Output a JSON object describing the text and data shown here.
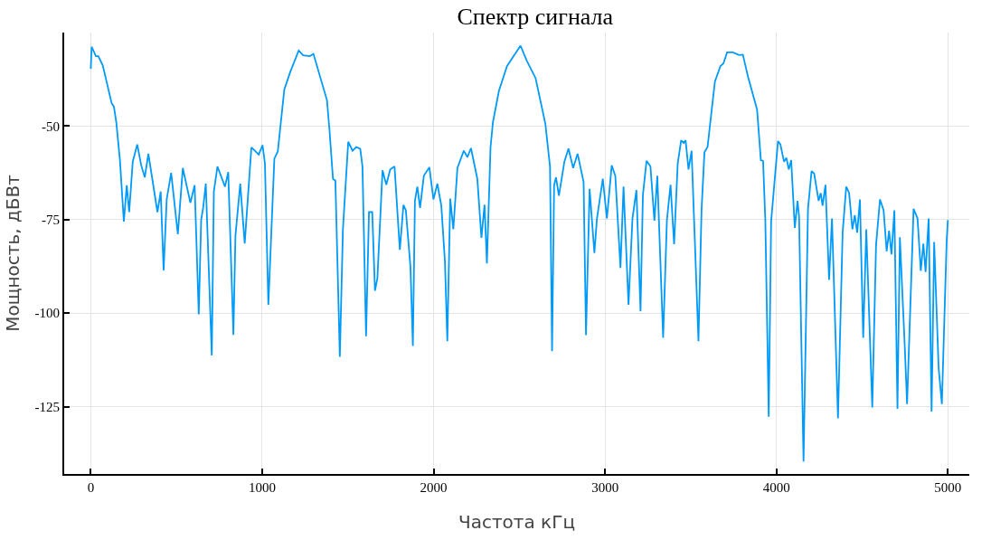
{
  "chart_data": {
    "type": "line",
    "title": "Спектр сигнала",
    "xlabel": "Частота кГц",
    "ylabel": "Мощность, дБВт",
    "x": [
      0,
      5,
      30,
      44,
      70,
      122,
      135,
      149,
      170,
      193,
      210,
      224,
      245,
      271,
      294,
      315,
      336,
      389,
      408,
      425,
      443,
      469,
      508,
      537,
      581,
      606,
      630,
      644,
      656,
      671,
      706,
      718,
      739,
      783,
      802,
      832,
      844,
      872,
      898,
      937,
      980,
      1002,
      1016,
      1036,
      1071,
      1091,
      1129,
      1164,
      1213,
      1239,
      1278,
      1299,
      1378,
      1392,
      1413,
      1427,
      1453,
      1471,
      1502,
      1527,
      1549,
      1572,
      1585,
      1606,
      1623,
      1642,
      1658,
      1672,
      1702,
      1724,
      1747,
      1772,
      1803,
      1824,
      1838,
      1865,
      1879,
      1891,
      1905,
      1921,
      1943,
      1975,
      1999,
      2022,
      2045,
      2066,
      2080,
      2097,
      2115,
      2139,
      2176,
      2197,
      2218,
      2255,
      2279,
      2297,
      2311,
      2332,
      2346,
      2381,
      2428,
      2472,
      2507,
      2544,
      2595,
      2652,
      2679,
      2691,
      2703,
      2714,
      2731,
      2763,
      2787,
      2814,
      2840,
      2875,
      2889,
      2910,
      2938,
      2953,
      2987,
      3011,
      3039,
      3060,
      3090,
      3108,
      3137,
      3160,
      3183,
      3207,
      3221,
      3242,
      3265,
      3288,
      3305,
      3339,
      3361,
      3382,
      3403,
      3424,
      3444,
      3459,
      3470,
      3487,
      3505,
      3545,
      3563,
      3580,
      3598,
      3641,
      3673,
      3691,
      3712,
      3746,
      3782,
      3804,
      3834,
      3887,
      3909,
      3922,
      3935,
      3955,
      3969,
      4009,
      4023,
      4044,
      4058,
      4072,
      4086,
      4107,
      4123,
      4132,
      4158,
      4184,
      4205,
      4220,
      4246,
      4258,
      4269,
      4286,
      4307,
      4324,
      4359,
      4386,
      4407,
      4424,
      4443,
      4457,
      4471,
      4487,
      4506,
      4524,
      4559,
      4581,
      4604,
      4625,
      4643,
      4657,
      4671,
      4688,
      4706,
      4720,
      4748,
      4762,
      4800,
      4823,
      4842,
      4857,
      4870,
      4888,
      4905,
      4920,
      4946,
      4965,
      4993,
      5000
    ],
    "series": [
      {
        "color": "#009af9",
        "values": [
          -34.7,
          -28.8,
          -31.3,
          -31.3,
          -33.8,
          -43.9,
          -44.8,
          -49,
          -59,
          -75.5,
          -65.8,
          -73,
          -59.5,
          -54.9,
          -60.4,
          -63.7,
          -57.4,
          -73,
          -67.5,
          -88.6,
          -69.6,
          -62.5,
          -78.9,
          -61.2,
          -70.5,
          -65.8,
          -100.3,
          -75.1,
          -71.7,
          -65.4,
          -111.3,
          -67.5,
          -60.8,
          -66.2,
          -62.3,
          -105.8,
          -79.3,
          -65.4,
          -81.4,
          -55.7,
          -57.6,
          -55.1,
          -60,
          -97.8,
          -58.7,
          -56.8,
          -40.2,
          -35.5,
          -29.8,
          -31.1,
          -31.3,
          -30.7,
          -43.1,
          -50.7,
          -64.1,
          -64.6,
          -111.7,
          -77.6,
          -54.2,
          -56.6,
          -55.6,
          -56.1,
          -60.8,
          -106.2,
          -73,
          -73,
          -94,
          -90.7,
          -61.8,
          -65.7,
          -61.6,
          -60.8,
          -83.1,
          -71.1,
          -72.5,
          -87.7,
          -108.8,
          -70,
          -66.2,
          -71.9,
          -63.3,
          -61,
          -69.6,
          -65.4,
          -71.3,
          -86.1,
          -107.5,
          -69.4,
          -77.6,
          -61.2,
          -56.6,
          -58.3,
          -55.9,
          -64.1,
          -79.9,
          -71,
          -86.7,
          -55.7,
          -49,
          -40.6,
          -34,
          -30.9,
          -28.5,
          -32.6,
          -37.2,
          -49.4,
          -60.8,
          -110.2,
          -65.8,
          -63.7,
          -68.6,
          -59.5,
          -56,
          -61.2,
          -57.4,
          -65,
          -105.9,
          -66.8,
          -83.9,
          -74.7,
          -64.1,
          -74.7,
          -60.5,
          -63.3,
          -87.9,
          -66.2,
          -97.8,
          -74.7,
          -67.1,
          -99.5,
          -68.4,
          -59.3,
          -60.8,
          -75.3,
          -63.3,
          -106.6,
          -75.1,
          -65.7,
          -81.6,
          -60,
          -53.8,
          -54.5,
          -53.8,
          -61.6,
          -56.6,
          -107.5,
          -72.5,
          -57,
          -55.6,
          -38.1,
          -34,
          -33.2,
          -30.3,
          -30.3,
          -31,
          -30.9,
          -36.8,
          -45.6,
          -59.1,
          -59.3,
          -75.1,
          -127.7,
          -75.5,
          -54,
          -54.9,
          -59.5,
          -58.5,
          -61.6,
          -59.1,
          -77.2,
          -70,
          -74.2,
          -139.7,
          -72.1,
          -62,
          -62.7,
          -70,
          -67.9,
          -71.3,
          -65.7,
          -91.1,
          -74.7,
          -128.1,
          -78.5,
          -66.2,
          -67.9,
          -77.6,
          -73.8,
          -78.5,
          -69.6,
          -106.6,
          -77.6,
          -125.2,
          -81.8,
          -69.6,
          -72.5,
          -83.5,
          -78,
          -84.3,
          -72.5,
          -125.6,
          -79.7,
          -108.3,
          -124.3,
          -72.1,
          -74.7,
          -88.7,
          -81.4,
          -89,
          -74.7,
          -126.3,
          -81,
          -114.6,
          -124.3,
          -80.6,
          -75.1
        ]
      }
    ],
    "xlim": [
      -155,
      5125
    ],
    "xticks": [
      0,
      1000,
      2000,
      3000,
      4000,
      5000
    ],
    "ylim": [
      -143,
      -25
    ],
    "yticks": [
      -50,
      -75,
      -100,
      -125
    ],
    "grid": true
  }
}
